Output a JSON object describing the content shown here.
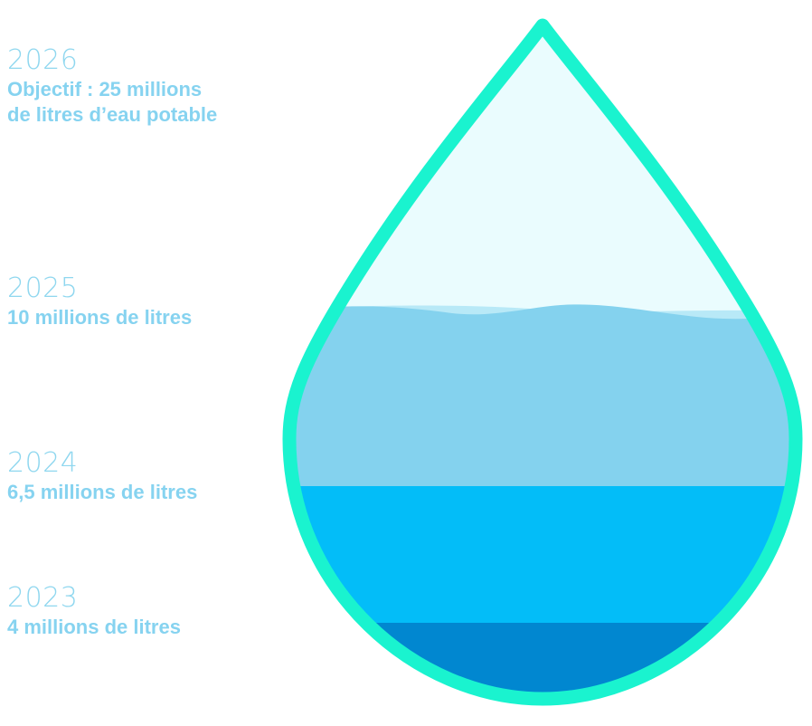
{
  "chart_data": {
    "type": "area",
    "title": "",
    "milestones": [
      {
        "year": "2026",
        "label": "Objectif : 25 millions\nde litres d’eau potable",
        "value_millions_litres": 25
      },
      {
        "year": "2025",
        "label": "10 millions de litres",
        "value_millions_litres": 10
      },
      {
        "year": "2024",
        "label": "6,5 millions de litres",
        "value_millions_litres": 6.5
      },
      {
        "year": "2023",
        "label": "4 millions de litres",
        "value_millions_litres": 4
      }
    ]
  },
  "colors": {
    "outline": "#1af3cf",
    "empty": "#eafcfe",
    "layer_2025": "#84d2ee",
    "layer_2024": "#03bdf8",
    "layer_2023": "#0187d0",
    "year_text": "#8fd7ef",
    "caption_text": "#86d3f0"
  },
  "icon": "water-drop-icon"
}
